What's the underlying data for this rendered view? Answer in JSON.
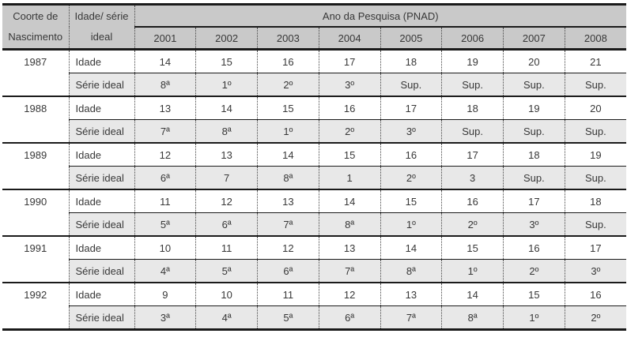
{
  "colors": {
    "header_bg": "#c9c9c9",
    "stripe_bg": "#e8e8e8",
    "border": "#1a1a1a",
    "text": "#383838"
  },
  "table": {
    "corner": {
      "line1": "Coorte de",
      "line2": "Nascimento"
    },
    "col2_header": {
      "line1": "Idade/ série",
      "line2": "ideal"
    },
    "span_header": "Ano da Pesquisa (PNAD)",
    "years": [
      "2001",
      "2002",
      "2003",
      "2004",
      "2005",
      "2006",
      "2007",
      "2008"
    ],
    "row_labels": {
      "idade": "Idade",
      "serie": "Série ideal"
    },
    "groups": [
      {
        "cohort": "1987",
        "idade": [
          "14",
          "15",
          "16",
          "17",
          "18",
          "19",
          "20",
          "21"
        ],
        "serie": [
          "8ª",
          "1º",
          "2º",
          "3º",
          "Sup.",
          "Sup.",
          "Sup.",
          "Sup."
        ]
      },
      {
        "cohort": "1988",
        "idade": [
          "13",
          "14",
          "15",
          "16",
          "17",
          "18",
          "19",
          "20"
        ],
        "serie": [
          "7ª",
          "8ª",
          "1º",
          "2º",
          "3º",
          "Sup.",
          "Sup.",
          "Sup."
        ]
      },
      {
        "cohort": "1989",
        "idade": [
          "12",
          "13",
          "14",
          "15",
          "16",
          "17",
          "18",
          "19"
        ],
        "serie": [
          "6ª",
          "7",
          "8ª",
          "1",
          "2º",
          "3",
          "Sup.",
          "Sup."
        ]
      },
      {
        "cohort": "1990",
        "idade": [
          "11",
          "12",
          "13",
          "14",
          "15",
          "16",
          "17",
          "18"
        ],
        "serie": [
          "5ª",
          "6ª",
          "7ª",
          "8ª",
          "1º",
          "2º",
          "3º",
          "Sup."
        ]
      },
      {
        "cohort": "1991",
        "idade": [
          "10",
          "11",
          "12",
          "13",
          "14",
          "15",
          "16",
          "17"
        ],
        "serie": [
          "4ª",
          "5ª",
          "6ª",
          "7ª",
          "8ª",
          "1º",
          "2º",
          "3º"
        ]
      },
      {
        "cohort": "1992",
        "idade": [
          "9",
          "10",
          "11",
          "12",
          "13",
          "14",
          "15",
          "16"
        ],
        "serie": [
          "3ª",
          "4ª",
          "5ª",
          "6ª",
          "7ª",
          "8ª",
          "1º",
          "2º"
        ]
      }
    ]
  }
}
